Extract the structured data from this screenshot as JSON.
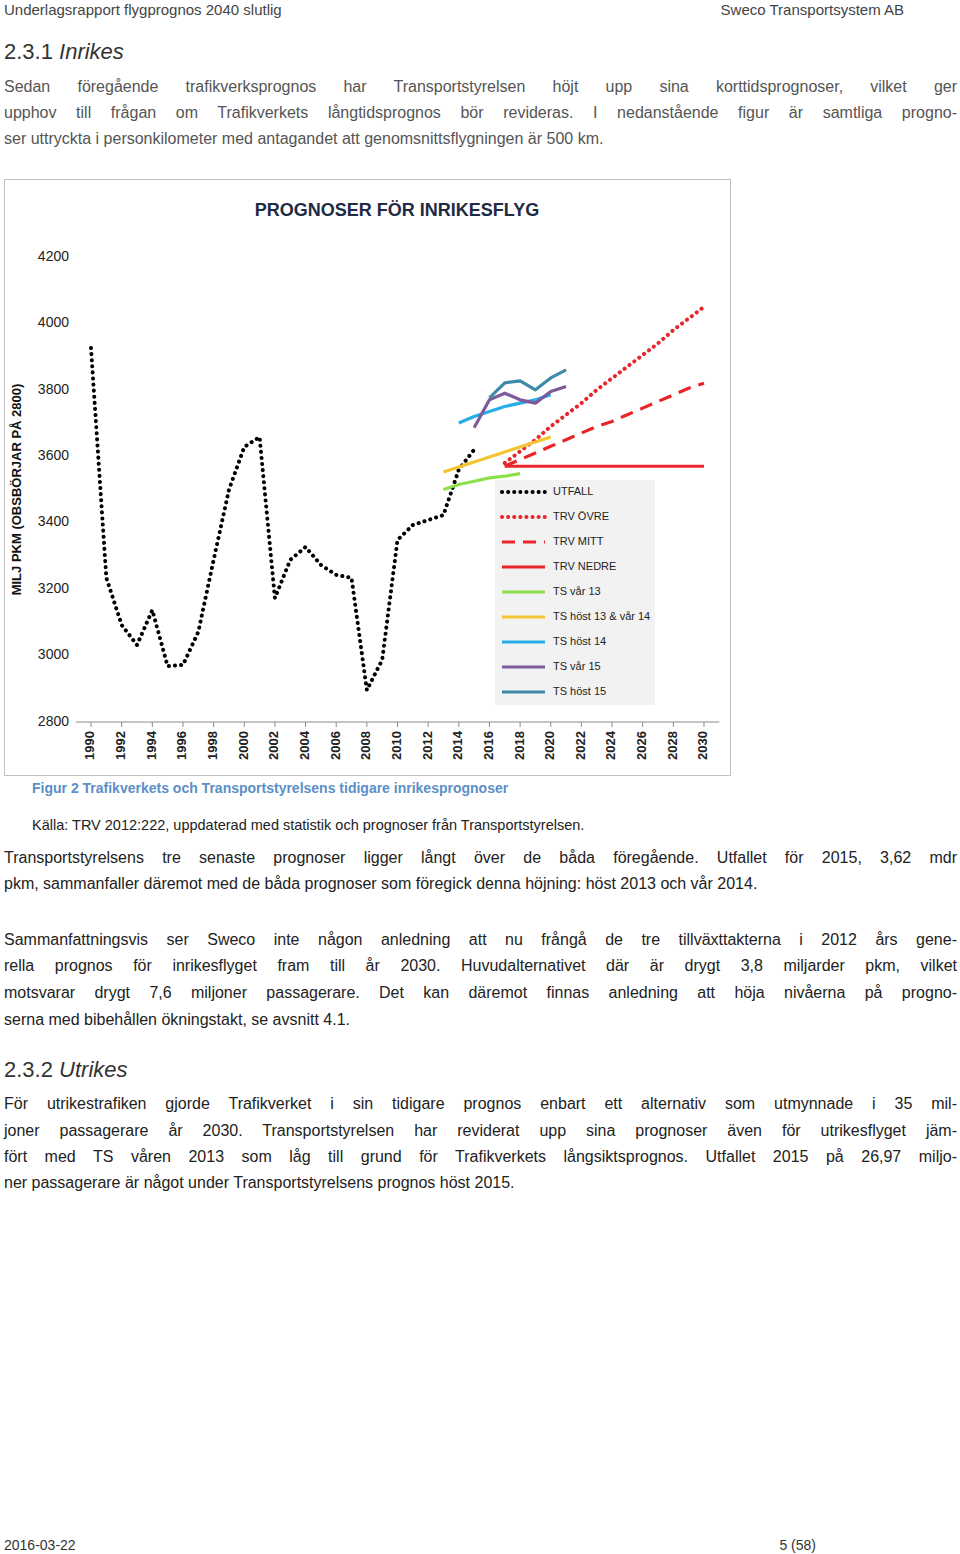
{
  "document": {
    "header": {
      "title": "Underlagsrapport flygprognos 2040 slutlig",
      "company": "Sweco Transportsystem AB"
    },
    "section_1": {
      "number": "2.3.1",
      "title": "Inrikes",
      "intro": [
        "Sedan föregående trafikverksprognos har Transportstyrelsen höjt upp sina korttidsprognoser, vilket ger",
        "upphov till frågan om Trafikverkets långtidsprognos bör revideras. I nedanstående figur är samtliga progno-",
        "ser uttryckta i personkilometer med antagandet att genomsnittsflygningen är 500 km."
      ],
      "figure_caption": "Figur 2 Trafikverkets och Transportstyrelsens tidigare inrikesprognoser",
      "figure_source": "Källa: TRV 2012:222, uppdaterad med statistik och prognoser från Transportstyrelsen.",
      "paragraphs": [
        [
          "Transportstyrelsens tre senaste prognoser ligger långt över de båda föregående. Utfallet för 2015, 3,62 mdr",
          "pkm, sammanfaller däremot med de båda prognoser som föregick denna höjning: höst 2013 och vår 2014."
        ],
        [
          "Sammanfattningsvis ser Sweco inte någon anledning att nu frångå de tre tillväxttakterna i 2012 års gene-",
          "rella prognos för inrikesflyget fram till år 2030. Huvudalternativet där är drygt 3,8 miljarder pkm, vilket",
          "motsvarar drygt 7,6 miljoner passagerare. Det kan däremot finnas anledning att höja nivåerna på progno-",
          "serna med bibehållen ökningstakt, se avsnitt 4.1."
        ]
      ]
    },
    "section_2": {
      "number": "2.3.2",
      "title": "Utrikes",
      "paragraphs": [
        [
          "För utrikestrafiken gjorde Trafikverket i sin tidigare prognos enbart ett alternativ som utmynnade i 35 mil-",
          "joner passagerare år 2030. Transportstyrelsen har reviderat upp sina prognoser även för utrikesflyget jäm-",
          "fört med TS våren 2013 som låg till grund för Trafikverkets långsiktsprognos. Utfallet 2015 på 26,97 miljo-",
          "ner passagerare är något under Transportstyrelsens prognos höst 2015."
        ]
      ]
    },
    "footer": {
      "date": "2016-03-22",
      "page": "5 (58)"
    }
  },
  "chart_data": {
    "type": "line",
    "title": "PROGNOSER FÖR INRIKESFLYG",
    "y_label": "MILJ PKM (OBSBÖRJAR PÅ 2800)",
    "x": [
      1990,
      1991,
      1992,
      1993,
      1994,
      1995,
      1996,
      1997,
      1998,
      1999,
      2000,
      2001,
      2002,
      2003,
      2004,
      2005,
      2006,
      2007,
      2008,
      2009,
      2010,
      2011,
      2012,
      2013,
      2014,
      2015,
      2016,
      2017,
      2018,
      2019,
      2020,
      2021,
      2022,
      2023,
      2024,
      2025,
      2026,
      2027,
      2028,
      2029,
      2030
    ],
    "xlim": [
      1989,
      2031
    ],
    "xticks": [
      1990,
      1992,
      1994,
      1996,
      1998,
      2000,
      2002,
      2004,
      2006,
      2008,
      2010,
      2012,
      2014,
      2016,
      2018,
      2020,
      2022,
      2024,
      2026,
      2028,
      2030
    ],
    "ylim": [
      2800,
      4200
    ],
    "yticks": [
      2800,
      3000,
      3200,
      3400,
      3600,
      3800,
      4000,
      4200
    ],
    "grid": false,
    "legend": "lower-right",
    "series": [
      {
        "name": "UTFALL",
        "color": "#000000",
        "line_style": "dotted",
        "values": [
          3926,
          3234,
          3092,
          3032,
          3137,
          2968,
          2972,
          3071,
          3288,
          3499,
          3628,
          3658,
          3173,
          3288,
          3327,
          3273,
          3243,
          3234,
          2896,
          2987,
          3348,
          3393,
          3408,
          3423,
          3560,
          3620,
          null,
          null,
          null,
          null,
          null,
          null,
          null,
          null,
          null,
          null,
          null,
          null,
          null,
          null,
          null
        ]
      },
      {
        "name": "TRV ÖVRE",
        "color": "#e8262a",
        "line_style": "dotted",
        "values": [
          null,
          null,
          null,
          null,
          null,
          null,
          null,
          null,
          null,
          null,
          null,
          null,
          null,
          null,
          null,
          null,
          null,
          null,
          null,
          null,
          null,
          null,
          null,
          null,
          null,
          null,
          null,
          3580,
          3615,
          3650,
          3690,
          3725,
          3760,
          3800,
          3835,
          3870,
          3905,
          3940,
          3980,
          4015,
          4050
        ]
      },
      {
        "name": "TRV MITT",
        "color": "#e8262a",
        "line_style": "dashed",
        "values": [
          null,
          null,
          null,
          null,
          null,
          null,
          null,
          null,
          null,
          null,
          null,
          null,
          null,
          null,
          null,
          null,
          null,
          null,
          null,
          null,
          null,
          null,
          null,
          null,
          null,
          null,
          null,
          3570,
          3590,
          3610,
          3630,
          3650,
          3670,
          3690,
          3705,
          3725,
          3745,
          3765,
          3785,
          3805,
          3820
        ]
      },
      {
        "name": "TRV NEDRE",
        "color": "#e8262a",
        "line_style": "solid",
        "values": [
          null,
          null,
          null,
          null,
          null,
          null,
          null,
          null,
          null,
          null,
          null,
          null,
          null,
          null,
          null,
          null,
          null,
          null,
          null,
          null,
          null,
          null,
          null,
          null,
          null,
          null,
          null,
          3570,
          3570,
          3570,
          3570,
          3570,
          3570,
          3570,
          3570,
          3570,
          3570,
          3570,
          3570,
          3570,
          3570
        ]
      },
      {
        "name": "TS vår 13",
        "color": "#8ee04a",
        "line_style": "solid",
        "values": [
          null,
          null,
          null,
          null,
          null,
          null,
          null,
          null,
          null,
          null,
          null,
          null,
          null,
          null,
          null,
          null,
          null,
          null,
          null,
          null,
          null,
          null,
          null,
          3500,
          3515,
          3525,
          3535,
          3540,
          3548,
          null,
          null,
          null,
          null,
          null,
          null,
          null,
          null,
          null,
          null,
          null,
          null
        ]
      },
      {
        "name": "TS höst 13 & vår 14",
        "color": "#f3c531",
        "line_style": "solid",
        "values": [
          null,
          null,
          null,
          null,
          null,
          null,
          null,
          null,
          null,
          null,
          null,
          null,
          null,
          null,
          null,
          null,
          null,
          null,
          null,
          null,
          null,
          null,
          null,
          3553,
          3568,
          3583,
          3598,
          3613,
          3628,
          3643,
          3658,
          null,
          null,
          null,
          null,
          null,
          null,
          null,
          null,
          null,
          null
        ]
      },
      {
        "name": "TS höst 14",
        "color": "#25aee8",
        "line_style": "solid",
        "values": [
          null,
          null,
          null,
          null,
          null,
          null,
          null,
          null,
          null,
          null,
          null,
          null,
          null,
          null,
          null,
          null,
          null,
          null,
          null,
          null,
          null,
          null,
          null,
          null,
          3700,
          3720,
          3735,
          3750,
          3760,
          3770,
          3785,
          null,
          null,
          null,
          null,
          null,
          null,
          null,
          null,
          null,
          null
        ]
      },
      {
        "name": "TS vår 15",
        "color": "#7d5a9a",
        "line_style": "solid",
        "values": [
          null,
          null,
          null,
          null,
          null,
          null,
          null,
          null,
          null,
          null,
          null,
          null,
          null,
          null,
          null,
          null,
          null,
          null,
          null,
          null,
          null,
          null,
          null,
          null,
          null,
          3686,
          3770,
          3790,
          3770,
          3760,
          3795,
          3810,
          null,
          null,
          null,
          null,
          null,
          null,
          null,
          null,
          null
        ]
      },
      {
        "name": "TS höst 15",
        "color": "#3d8ba8",
        "line_style": "solid",
        "values": [
          null,
          null,
          null,
          null,
          null,
          null,
          null,
          null,
          null,
          null,
          null,
          null,
          null,
          null,
          null,
          null,
          null,
          null,
          null,
          null,
          null,
          null,
          null,
          null,
          null,
          null,
          3776,
          3821,
          3827,
          3800,
          3836,
          3860,
          null,
          null,
          null,
          null,
          null,
          null,
          null,
          null,
          null
        ]
      }
    ]
  }
}
